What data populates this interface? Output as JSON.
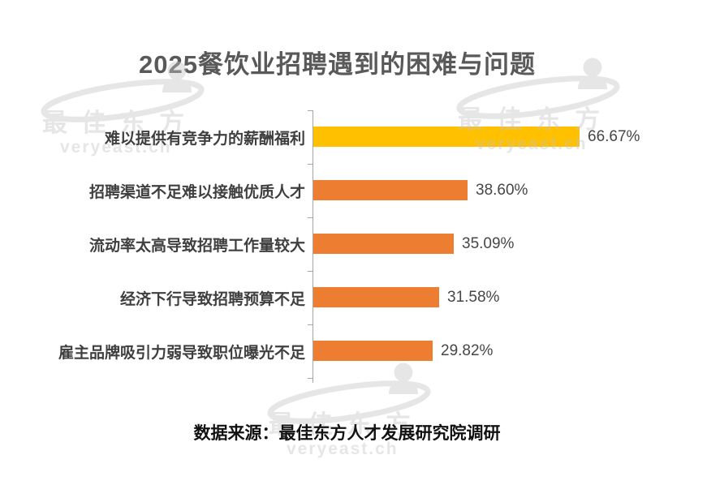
{
  "title": "2025餐饮业招聘遇到的困难与问题",
  "source_note": "数据来源：最佳东方人才发展研究院调研",
  "watermark": {
    "brand_cn": "最佳东方",
    "brand_en": "veryeast.ch"
  },
  "colors": {
    "highlight_bar": "#FFC000",
    "bar": "#ED7D31",
    "title_text": "#595959",
    "category_text": "#3F3F3F",
    "value_text": "#464646",
    "axis": "#A6A6A6",
    "source_text": "#111111",
    "watermark": "#C4C4C4",
    "background": "#FFFFFF"
  },
  "chart_data": {
    "type": "bar",
    "orientation": "horizontal",
    "title": "2025餐饮业招聘遇到的困难与问题",
    "categories": [
      "难以提供有竞争力的薪酬福利",
      "招聘渠道不足难以接触优质人才",
      "流动率太高导致招聘工作量较大",
      "经济下行导致招聘预算不足",
      "雇主品牌吸引力弱导致职位曝光不足"
    ],
    "values": [
      66.67,
      38.6,
      35.09,
      31.58,
      29.82
    ],
    "value_labels": [
      "66.67%",
      "38.60%",
      "35.09%",
      "31.58%",
      "29.82%"
    ],
    "highlight_index": 0,
    "xlabel": "",
    "ylabel": "",
    "xlim": [
      0,
      70
    ],
    "grid": false,
    "legend": false,
    "value_axis_visible": false
  }
}
